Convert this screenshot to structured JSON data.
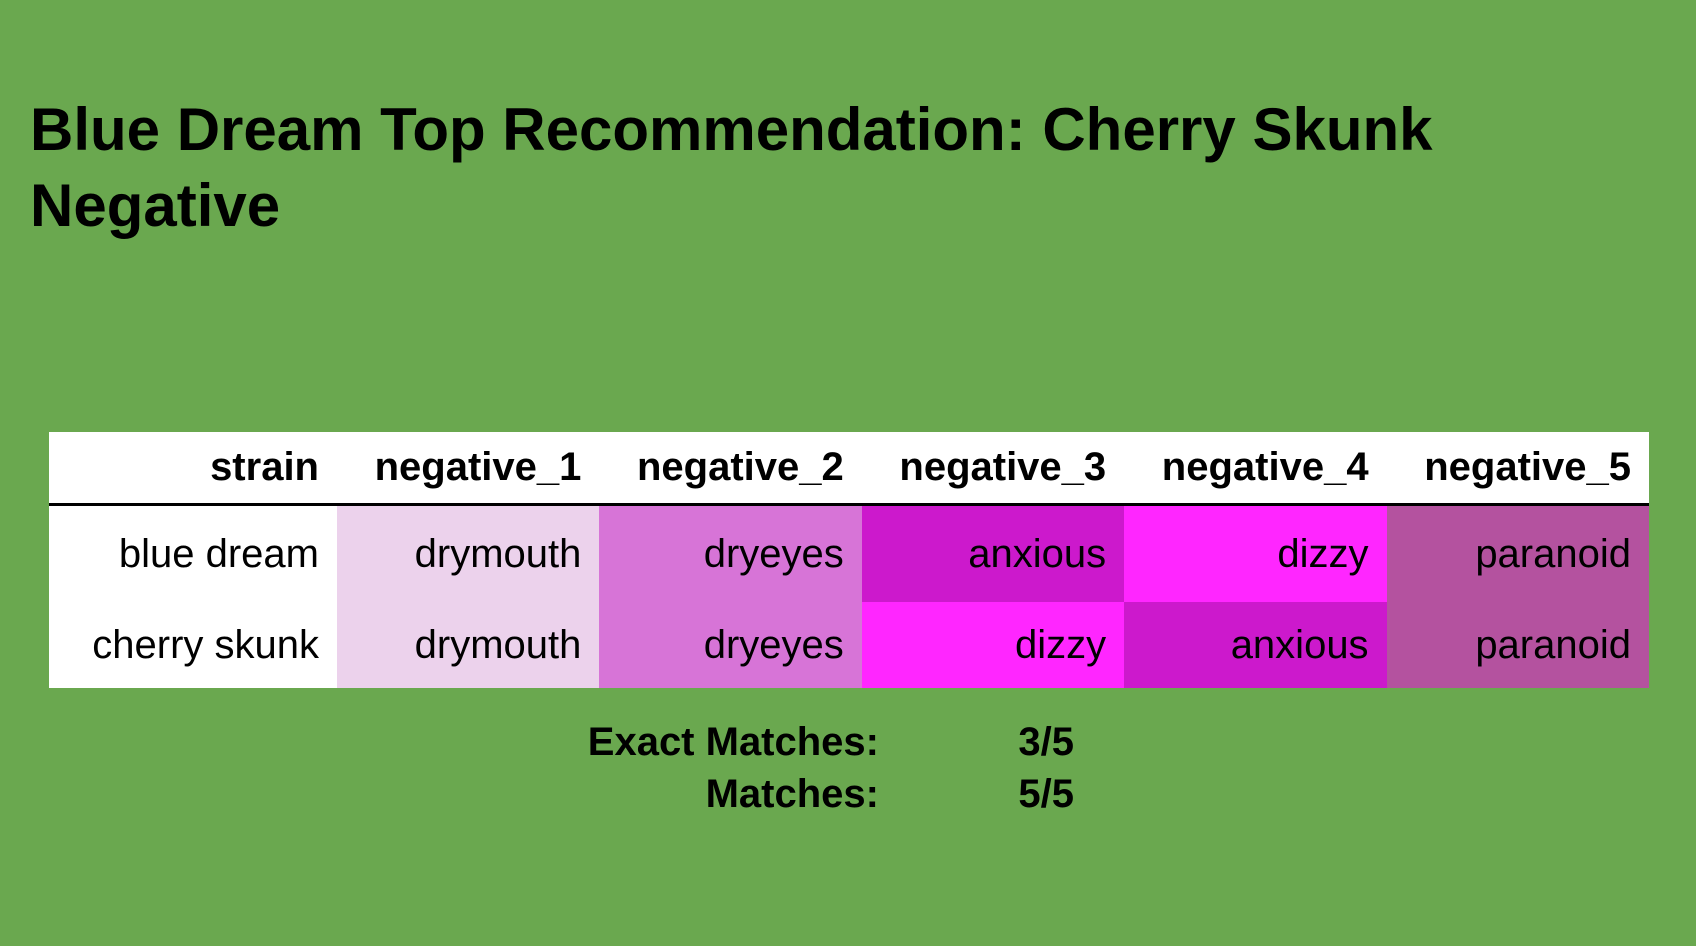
{
  "title_line1": "Blue Dream Top Recommendation: Cherry Skunk",
  "title_line2": "Negative",
  "colors": {
    "background": "#6aa84f",
    "drymouth": "#ecd2ec",
    "dryeyes": "#d774d7",
    "anxious": "#cc19cc",
    "dizzy": "#ff26ff",
    "paranoid": "#b4529f",
    "strain_cell": "#ffffff"
  },
  "chart_data": {
    "type": "table",
    "columns": [
      "strain",
      "negative_1",
      "negative_2",
      "negative_3",
      "negative_4",
      "negative_5"
    ],
    "rows": [
      [
        "blue dream",
        "drymouth",
        "dryeyes",
        "anxious",
        "dizzy",
        "paranoid"
      ],
      [
        "cherry skunk",
        "drymouth",
        "dryeyes",
        "dizzy",
        "anxious",
        "paranoid"
      ]
    ]
  },
  "stats": [
    {
      "label": "Exact Matches:",
      "value": "3/5"
    },
    {
      "label": "Matches:",
      "value": "5/5"
    }
  ]
}
